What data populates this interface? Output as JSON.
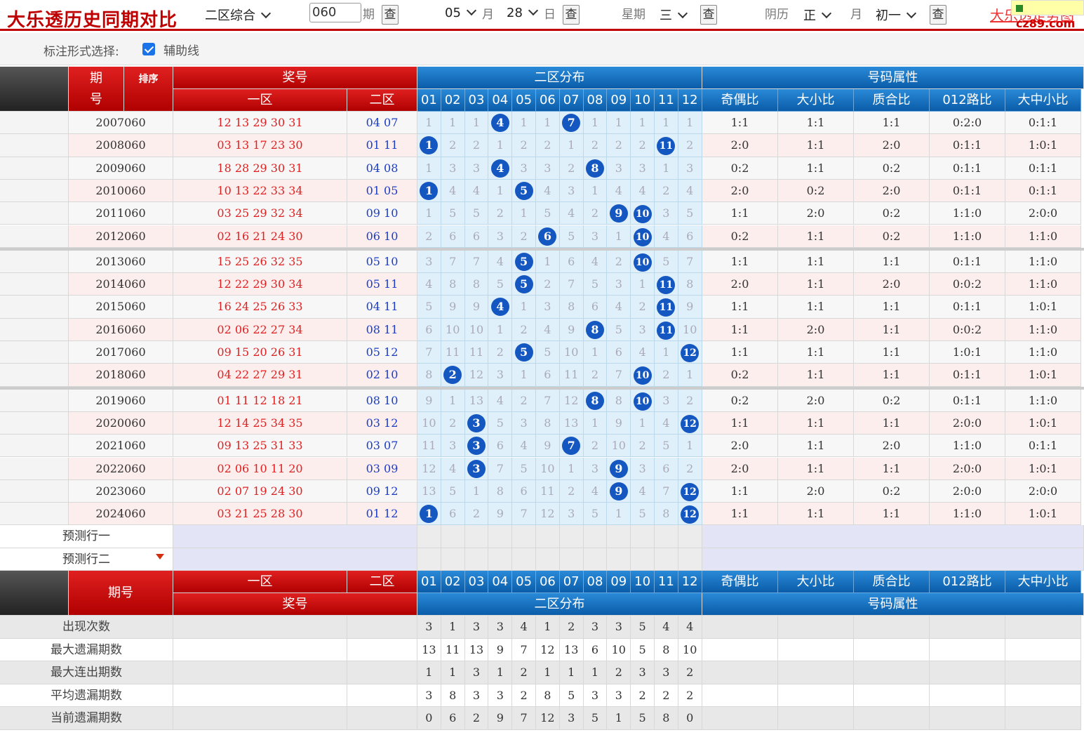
{
  "topbar": {
    "title": "大乐透历史同期对比",
    "zone_select": "二区综合",
    "issue_input": "060",
    "issue_label": "期",
    "query_label": "查",
    "month_value": "05",
    "month_label": "月",
    "day_value": "28",
    "day_label": "日",
    "week_label": "星期",
    "week_value": "三",
    "lunar_label": "阴历",
    "lunar_month": "正",
    "lunar_month_label": "月",
    "lunar_day": "初一",
    "link_text": "大乐透走势图",
    "brand_text": "cz89.com"
  },
  "options": {
    "label": "标注形式选择:",
    "aux_line": "辅助线"
  },
  "header": {
    "issue_top": "期",
    "issue_bottom": "号",
    "sort_label": "排序",
    "prize": "奖号",
    "zone1": "一区",
    "zone2": "二区",
    "dist": "二区分布",
    "attr": "号码属性",
    "numbers": [
      "01",
      "02",
      "03",
      "04",
      "05",
      "06",
      "07",
      "08",
      "09",
      "10",
      "11",
      "12"
    ],
    "attrs": [
      "奇偶比",
      "大小比",
      "质合比",
      "012路比",
      "大中小比"
    ],
    "issue_full": "期号"
  },
  "rows": [
    {
      "issue": "2007060",
      "z1": "12 13 29 30 31",
      "z2": "04 07",
      "dist": [
        "1",
        "1",
        "1",
        "4",
        "1",
        "1",
        "7",
        "1",
        "1",
        "1",
        "1",
        "1"
      ],
      "hit": [
        4,
        7
      ],
      "attrs": [
        "1:1",
        "1:1",
        "1:1",
        "0:2:0",
        "0:1:1"
      ]
    },
    {
      "issue": "2008060",
      "z1": "03 13 17 23 30",
      "z2": "01 11",
      "dist": [
        "1",
        "2",
        "2",
        "1",
        "2",
        "2",
        "1",
        "2",
        "2",
        "2",
        "11",
        "2"
      ],
      "hit": [
        1,
        11
      ],
      "attrs": [
        "2:0",
        "1:1",
        "2:0",
        "0:1:1",
        "1:0:1"
      ]
    },
    {
      "issue": "2009060",
      "z1": "18 28 29 30 31",
      "z2": "04 08",
      "dist": [
        "1",
        "3",
        "3",
        "4",
        "3",
        "3",
        "2",
        "8",
        "3",
        "3",
        "1",
        "3"
      ],
      "hit": [
        4,
        8
      ],
      "attrs": [
        "0:2",
        "1:1",
        "0:2",
        "0:1:1",
        "0:1:1"
      ]
    },
    {
      "issue": "2010060",
      "z1": "10 13 22 33 34",
      "z2": "01 05",
      "dist": [
        "1",
        "4",
        "4",
        "1",
        "5",
        "4",
        "3",
        "1",
        "4",
        "4",
        "2",
        "4"
      ],
      "hit": [
        1,
        5
      ],
      "attrs": [
        "2:0",
        "0:2",
        "2:0",
        "0:1:1",
        "0:1:1"
      ]
    },
    {
      "issue": "2011060",
      "z1": "03 25 29 32 34",
      "z2": "09 10",
      "dist": [
        "1",
        "5",
        "5",
        "2",
        "1",
        "5",
        "4",
        "2",
        "9",
        "10",
        "3",
        "5"
      ],
      "hit": [
        9,
        10
      ],
      "attrs": [
        "1:1",
        "2:0",
        "0:2",
        "1:1:0",
        "2:0:0"
      ]
    },
    {
      "issue": "2012060",
      "z1": "02 16 21 24 30",
      "z2": "06 10",
      "dist": [
        "2",
        "6",
        "6",
        "3",
        "2",
        "6",
        "5",
        "3",
        "1",
        "10",
        "4",
        "6"
      ],
      "hit": [
        6,
        10
      ],
      "attrs": [
        "0:2",
        "1:1",
        "0:2",
        "1:1:0",
        "1:1:0"
      ]
    },
    {
      "issue": "2013060",
      "z1": "15 25 26 32 35",
      "z2": "05 10",
      "dist": [
        "3",
        "7",
        "7",
        "4",
        "5",
        "1",
        "6",
        "4",
        "2",
        "10",
        "5",
        "7"
      ],
      "hit": [
        5,
        10
      ],
      "attrs": [
        "1:1",
        "1:1",
        "1:1",
        "0:1:1",
        "1:1:0"
      ]
    },
    {
      "issue": "2014060",
      "z1": "12 22 29 30 34",
      "z2": "05 11",
      "dist": [
        "4",
        "8",
        "8",
        "5",
        "5",
        "2",
        "7",
        "5",
        "3",
        "1",
        "11",
        "8"
      ],
      "hit": [
        5,
        11
      ],
      "attrs": [
        "2:0",
        "1:1",
        "2:0",
        "0:0:2",
        "1:1:0"
      ]
    },
    {
      "issue": "2015060",
      "z1": "16 24 25 26 33",
      "z2": "04 11",
      "dist": [
        "5",
        "9",
        "9",
        "4",
        "1",
        "3",
        "8",
        "6",
        "4",
        "2",
        "11",
        "9"
      ],
      "hit": [
        4,
        11
      ],
      "attrs": [
        "1:1",
        "1:1",
        "1:1",
        "0:1:1",
        "1:0:1"
      ]
    },
    {
      "issue": "2016060",
      "z1": "02 06 22 27 34",
      "z2": "08 11",
      "dist": [
        "6",
        "10",
        "10",
        "1",
        "2",
        "4",
        "9",
        "8",
        "5",
        "3",
        "11",
        "10"
      ],
      "hit": [
        8,
        11
      ],
      "attrs": [
        "1:1",
        "2:0",
        "1:1",
        "0:0:2",
        "1:1:0"
      ]
    },
    {
      "issue": "2017060",
      "z1": "09 15 20 26 31",
      "z2": "05 12",
      "dist": [
        "7",
        "11",
        "11",
        "2",
        "5",
        "5",
        "10",
        "1",
        "6",
        "4",
        "1",
        "12"
      ],
      "hit": [
        5,
        12
      ],
      "attrs": [
        "1:1",
        "1:1",
        "1:1",
        "1:0:1",
        "1:1:0"
      ]
    },
    {
      "issue": "2018060",
      "z1": "04 22 27 29 31",
      "z2": "02 10",
      "dist": [
        "8",
        "2",
        "12",
        "3",
        "1",
        "6",
        "11",
        "2",
        "7",
        "10",
        "2",
        "1"
      ],
      "hit": [
        2,
        10
      ],
      "attrs": [
        "0:2",
        "1:1",
        "1:1",
        "0:1:1",
        "1:0:1"
      ]
    },
    {
      "issue": "2019060",
      "z1": "01 11 12 18 21",
      "z2": "08 10",
      "dist": [
        "9",
        "1",
        "13",
        "4",
        "2",
        "7",
        "12",
        "8",
        "8",
        "10",
        "3",
        "2"
      ],
      "hit": [
        8,
        10
      ],
      "attrs": [
        "0:2",
        "2:0",
        "0:2",
        "0:1:1",
        "1:1:0"
      ]
    },
    {
      "issue": "2020060",
      "z1": "12 14 25 34 35",
      "z2": "03 12",
      "dist": [
        "10",
        "2",
        "3",
        "5",
        "3",
        "8",
        "13",
        "1",
        "9",
        "1",
        "4",
        "12"
      ],
      "hit": [
        3,
        12
      ],
      "attrs": [
        "1:1",
        "1:1",
        "1:1",
        "2:0:0",
        "1:0:1"
      ]
    },
    {
      "issue": "2021060",
      "z1": "09 13 25 31 33",
      "z2": "03 07",
      "dist": [
        "11",
        "3",
        "3",
        "6",
        "4",
        "9",
        "7",
        "2",
        "10",
        "2",
        "5",
        "1"
      ],
      "hit": [
        3,
        7
      ],
      "attrs": [
        "2:0",
        "1:1",
        "2:0",
        "1:1:0",
        "0:1:1"
      ]
    },
    {
      "issue": "2022060",
      "z1": "02 06 10 11 20",
      "z2": "03 09",
      "dist": [
        "12",
        "4",
        "3",
        "7",
        "5",
        "10",
        "1",
        "3",
        "9",
        "3",
        "6",
        "2"
      ],
      "hit": [
        3,
        9
      ],
      "attrs": [
        "2:0",
        "1:1",
        "1:1",
        "2:0:0",
        "1:0:1"
      ]
    },
    {
      "issue": "2023060",
      "z1": "02 07 19 24 30",
      "z2": "09 12",
      "dist": [
        "13",
        "5",
        "1",
        "8",
        "6",
        "11",
        "2",
        "4",
        "9",
        "4",
        "7",
        "12"
      ],
      "hit": [
        9,
        12
      ],
      "attrs": [
        "1:1",
        "2:0",
        "0:2",
        "2:0:0",
        "2:0:0"
      ]
    },
    {
      "issue": "2024060",
      "z1": "03 21 25 28 30",
      "z2": "01 12",
      "dist": [
        "1",
        "6",
        "2",
        "9",
        "7",
        "12",
        "3",
        "5",
        "1",
        "5",
        "8",
        "12"
      ],
      "hit": [
        1,
        12
      ],
      "attrs": [
        "1:1",
        "1:1",
        "1:1",
        "1:1:0",
        "1:0:1"
      ]
    }
  ],
  "predict": [
    "预测行一",
    "预测行二"
  ],
  "stats": [
    {
      "label": "出现次数",
      "values": [
        "3",
        "1",
        "3",
        "3",
        "4",
        "1",
        "2",
        "3",
        "3",
        "5",
        "4",
        "4"
      ]
    },
    {
      "label": "最大遗漏期数",
      "values": [
        "13",
        "11",
        "13",
        "9",
        "7",
        "12",
        "13",
        "6",
        "10",
        "5",
        "8",
        "10"
      ]
    },
    {
      "label": "最大连出期数",
      "values": [
        "1",
        "1",
        "3",
        "1",
        "2",
        "1",
        "1",
        "1",
        "2",
        "3",
        "3",
        "2"
      ]
    },
    {
      "label": "平均遗漏期数",
      "values": [
        "3",
        "8",
        "3",
        "3",
        "2",
        "8",
        "5",
        "3",
        "3",
        "2",
        "2",
        "2"
      ]
    },
    {
      "label": "当前遗漏期数",
      "values": [
        "0",
        "6",
        "2",
        "9",
        "7",
        "12",
        "3",
        "5",
        "1",
        "5",
        "8",
        "0"
      ]
    }
  ],
  "colors": {
    "red": "#c00000",
    "blue": "#0b5ca8",
    "ball": "#1557c0",
    "z1": "#e02020",
    "z2": "#1a3cc8"
  }
}
